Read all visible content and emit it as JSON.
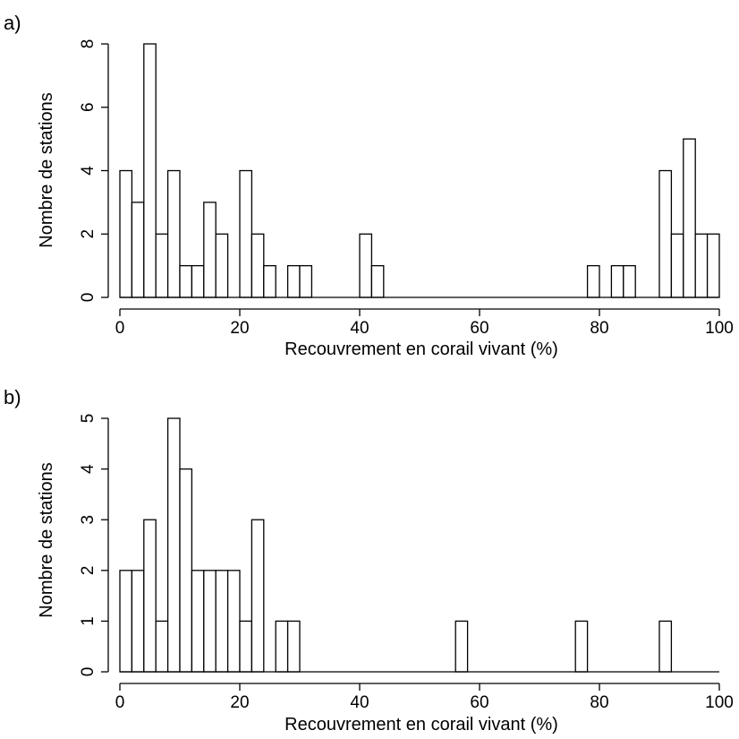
{
  "chart_data": [
    {
      "type": "bar",
      "panel_label": "a)",
      "xlabel": "Recouvrement en corail vivant (%)",
      "ylabel": "Nombre de stations",
      "xlim": [
        0,
        100
      ],
      "ylim": [
        0,
        8
      ],
      "xticks": [
        0,
        20,
        40,
        60,
        80,
        100
      ],
      "yticks": [
        0,
        2,
        4,
        6,
        8
      ],
      "bin_width": 2,
      "bin_edges_start": [
        0,
        2,
        4,
        6,
        8,
        10,
        12,
        14,
        16,
        18,
        20,
        22,
        24,
        26,
        28,
        30,
        32,
        34,
        36,
        38,
        40,
        42,
        44,
        46,
        48,
        50,
        52,
        54,
        56,
        58,
        60,
        62,
        64,
        66,
        68,
        70,
        72,
        74,
        76,
        78,
        80,
        82,
        84,
        86,
        88,
        90,
        92,
        94,
        96,
        98
      ],
      "values": [
        4,
        3,
        8,
        2,
        4,
        1,
        1,
        3,
        2,
        0,
        4,
        2,
        1,
        0,
        1,
        1,
        0,
        0,
        0,
        0,
        2,
        1,
        0,
        0,
        0,
        0,
        0,
        0,
        0,
        0,
        0,
        0,
        0,
        0,
        0,
        0,
        0,
        0,
        0,
        1,
        0,
        1,
        1,
        0,
        0,
        4,
        2,
        5,
        2,
        2
      ],
      "grid": false
    },
    {
      "type": "bar",
      "panel_label": "b)",
      "xlabel": "Recouvrement en corail vivant (%)",
      "ylabel": "Nombre de stations",
      "xlim": [
        0,
        100
      ],
      "ylim": [
        0,
        5
      ],
      "xticks": [
        0,
        20,
        40,
        60,
        80,
        100
      ],
      "yticks": [
        0,
        1,
        2,
        3,
        4,
        5
      ],
      "bin_width": 2,
      "bin_edges_start": [
        0,
        2,
        4,
        6,
        8,
        10,
        12,
        14,
        16,
        18,
        20,
        22,
        24,
        26,
        28,
        30,
        32,
        34,
        36,
        38,
        40,
        42,
        44,
        46,
        48,
        50,
        52,
        54,
        56,
        58,
        60,
        62,
        64,
        66,
        68,
        70,
        72,
        74,
        76,
        78,
        80,
        82,
        84,
        86,
        88,
        90,
        92,
        94,
        96,
        98
      ],
      "values": [
        2,
        2,
        3,
        1,
        5,
        4,
        2,
        2,
        2,
        2,
        1,
        3,
        0,
        1,
        1,
        0,
        0,
        0,
        0,
        0,
        0,
        0,
        0,
        0,
        0,
        0,
        0,
        0,
        1,
        0,
        0,
        0,
        0,
        0,
        0,
        0,
        0,
        0,
        1,
        0,
        0,
        0,
        0,
        0,
        0,
        1,
        0,
        0,
        0,
        0
      ],
      "grid": false
    }
  ]
}
